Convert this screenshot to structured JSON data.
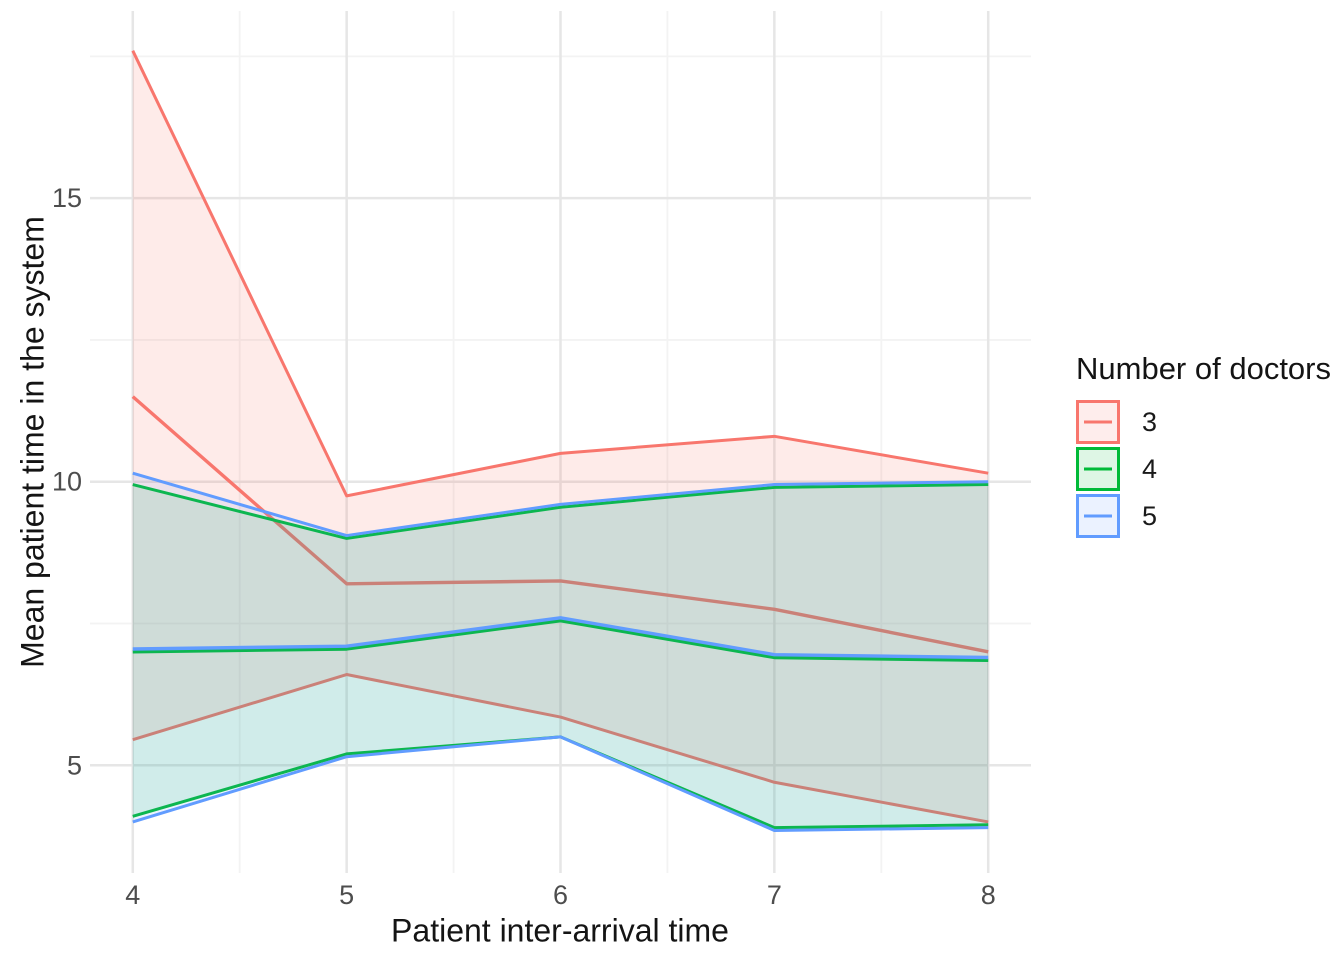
{
  "chart_data": {
    "type": "area",
    "title": "",
    "xlabel": "Patient inter-arrival time",
    "ylabel": "Mean patient time in the system",
    "legend_title": "Number of doctors",
    "legend_position": "right",
    "grid": "major+minor",
    "x": [
      4,
      5,
      6,
      7,
      8
    ],
    "x_ticks": [
      4,
      5,
      6,
      7,
      8
    ],
    "y_ticks": [
      5,
      10,
      15
    ],
    "x_minor": [
      4.5,
      5.5,
      6.5,
      7.5
    ],
    "y_minor": [
      7.5,
      12.5,
      17.5
    ],
    "xlim": [
      3.8,
      8.2
    ],
    "ylim": [
      3.1,
      18.3
    ],
    "series": [
      {
        "name": "3",
        "color": "#F8766D",
        "fill_alpha": 0.15,
        "mean": [
          11.5,
          8.2,
          8.25,
          7.75,
          7.0
        ],
        "upper": [
          17.6,
          9.75,
          10.5,
          10.8,
          10.15
        ],
        "lower": [
          5.45,
          6.6,
          5.85,
          4.7,
          4.0
        ]
      },
      {
        "name": "4",
        "color": "#00BA38",
        "fill_alpha": 0.12,
        "mean": [
          7.0,
          7.05,
          7.55,
          6.9,
          6.85
        ],
        "upper": [
          9.95,
          9.0,
          9.55,
          9.9,
          9.95
        ],
        "lower": [
          4.1,
          5.2,
          5.5,
          3.9,
          3.95
        ]
      },
      {
        "name": "5",
        "color": "#619CFF",
        "fill_alpha": 0.12,
        "mean": [
          7.05,
          7.1,
          7.6,
          6.95,
          6.9
        ],
        "upper": [
          10.15,
          9.05,
          9.6,
          9.95,
          10.0
        ],
        "lower": [
          4.0,
          5.15,
          5.5,
          3.85,
          3.9
        ]
      }
    ]
  }
}
